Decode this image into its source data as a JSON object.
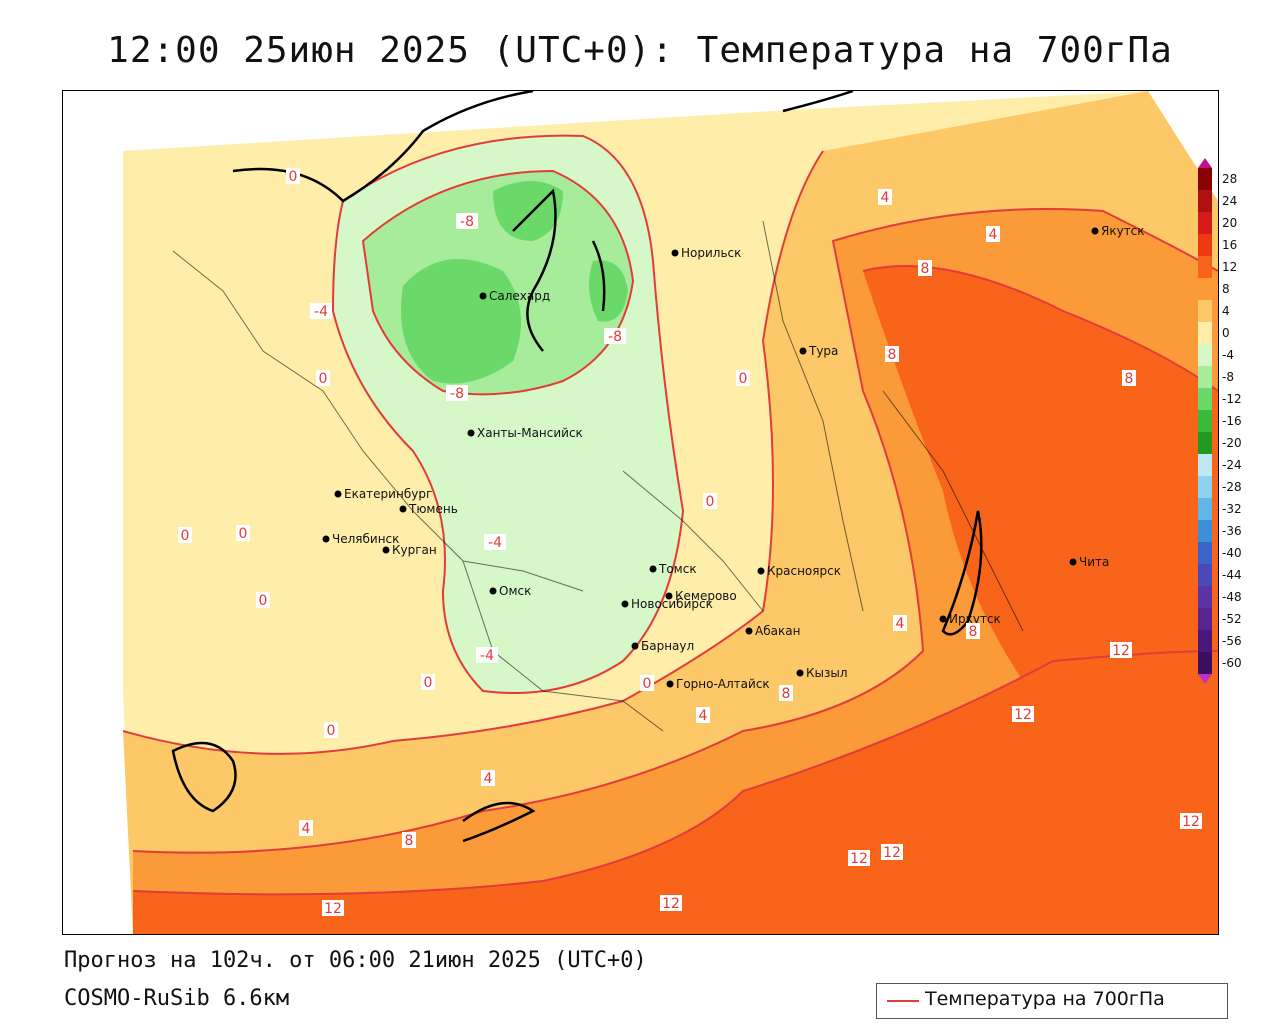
{
  "title": "12:00 25июн 2025 (UTC+0): Температура на 700гПа",
  "forecast_line": "Прогноз на 102ч. от 06:00 21июн 2025 (UTC+0)",
  "model_line": "COSMO-RuSib 6.6км",
  "legend": {
    "label": "Температура на 700гПа",
    "line_color": "#e23b3b"
  },
  "colorbar": {
    "labels": [
      "28",
      "24",
      "20",
      "16",
      "12",
      "8",
      "4",
      "0",
      "-4",
      "-8",
      "-12",
      "-16",
      "-20",
      "-24",
      "-28",
      "-32",
      "-36",
      "-40",
      "-44",
      "-48",
      "-52",
      "-56",
      "-60"
    ],
    "colors": [
      "#8b0000",
      "#b01010",
      "#d41c1c",
      "#ee3a10",
      "#f8641a",
      "#fb9a38",
      "#fdc868",
      "#feeeaa",
      "#d6f7c7",
      "#a6ec9a",
      "#6bd96a",
      "#3aba3a",
      "#1f9a1f",
      "#bfe8f7",
      "#8fd2f0",
      "#62b6e6",
      "#3d8fd9",
      "#3a64c8",
      "#4b49b6",
      "#5a34a4",
      "#5a2490",
      "#4a1878",
      "#3a0e60"
    ]
  },
  "cities": [
    {
      "name": "Норильск"
    },
    {
      "name": "Якутск"
    },
    {
      "name": "Салехард"
    },
    {
      "name": "Тура"
    },
    {
      "name": "Ханты-Мансийск"
    },
    {
      "name": "Екатеринбург"
    },
    {
      "name": "Тюмень"
    },
    {
      "name": "Челябинск"
    },
    {
      "name": "Курган"
    },
    {
      "name": "Томск"
    },
    {
      "name": "Красноярск"
    },
    {
      "name": "Омск"
    },
    {
      "name": "Новосибирск"
    },
    {
      "name": "Кемерово"
    },
    {
      "name": "Абакан"
    },
    {
      "name": "Иркутск"
    },
    {
      "name": "Чита"
    },
    {
      "name": "Барнаул"
    },
    {
      "name": "Горно-Алтайск"
    },
    {
      "name": "Кызыл"
    }
  ],
  "isotherm_labels": [
    {
      "text": "0"
    },
    {
      "text": "0"
    },
    {
      "text": "0"
    },
    {
      "text": "0"
    },
    {
      "text": "0"
    },
    {
      "text": "0"
    },
    {
      "text": "0"
    },
    {
      "text": "0"
    },
    {
      "text": "0"
    },
    {
      "text": "0"
    },
    {
      "text": "-4"
    },
    {
      "text": "-4"
    },
    {
      "text": "-4"
    },
    {
      "text": "-8"
    },
    {
      "text": "-8"
    },
    {
      "text": "-8"
    },
    {
      "text": "4"
    },
    {
      "text": "4"
    },
    {
      "text": "4"
    },
    {
      "text": "4"
    },
    {
      "text": "4"
    },
    {
      "text": "4"
    },
    {
      "text": "8"
    },
    {
      "text": "8"
    },
    {
      "text": "8"
    },
    {
      "text": "8"
    },
    {
      "text": "8"
    },
    {
      "text": "8"
    },
    {
      "text": "12"
    },
    {
      "text": "12"
    },
    {
      "text": "12"
    },
    {
      "text": "12"
    },
    {
      "text": "12"
    },
    {
      "text": "12"
    },
    {
      "text": "12"
    }
  ]
}
